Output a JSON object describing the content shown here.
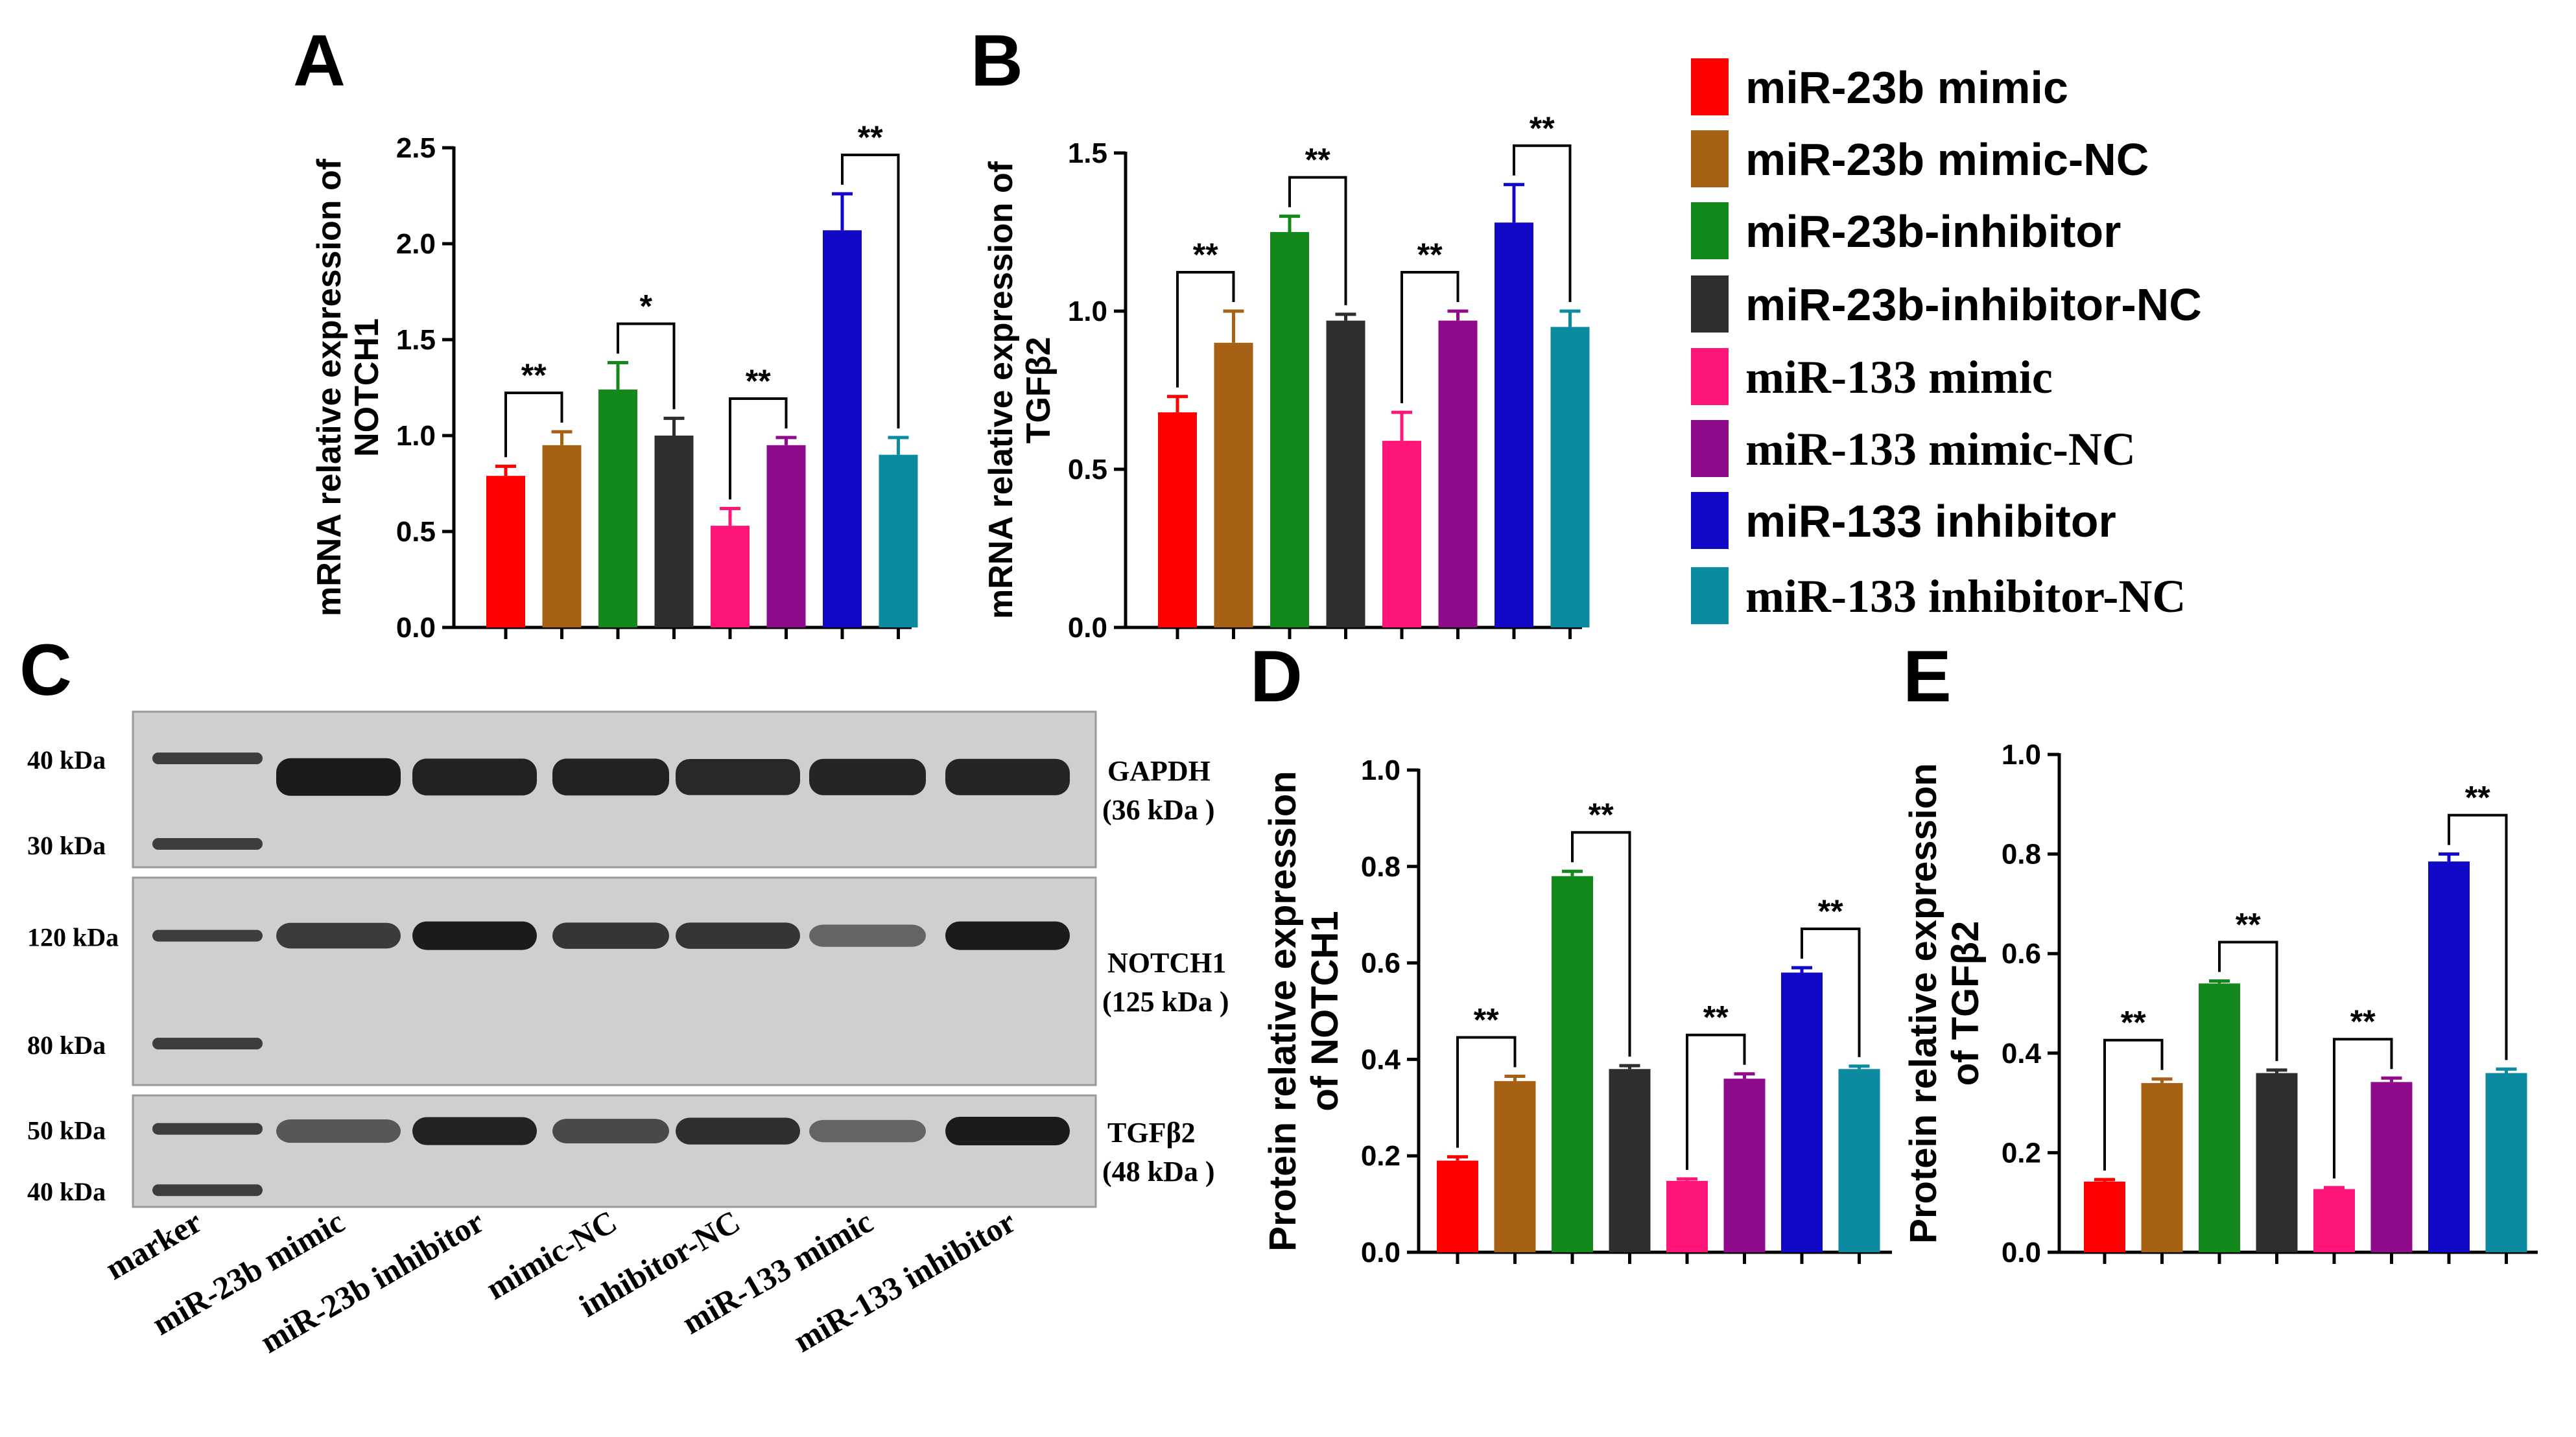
{
  "colors": {
    "mimic23": "#ff0000",
    "mimic23nc": "#a66114",
    "inh23": "#12891a",
    "inh23nc": "#2e2e2e",
    "mimic133": "#ff1577",
    "mimic133nc": "#900b8c",
    "inh133": "#1208c8",
    "inh133nc": "#0b8aa0"
  },
  "legend": {
    "items": [
      {
        "label": "miR-23b mimic",
        "color": "#ff0000",
        "font": "sans"
      },
      {
        "label": "miR-23b mimic-NC",
        "color": "#a66114",
        "font": "sans"
      },
      {
        "label": "miR-23b-inhibitor",
        "color": "#12891a",
        "font": "sans"
      },
      {
        "label": "miR-23b-inhibitor-NC",
        "color": "#2e2e2e",
        "font": "sans"
      },
      {
        "label": "miR-133 mimic",
        "color": "#ff1577",
        "font": "serif"
      },
      {
        "label": "miR-133 mimic-NC",
        "color": "#900b8c",
        "font": "serif"
      },
      {
        "label": "miR-133 inhibitor",
        "color": "#1208c8",
        "font": "sans"
      },
      {
        "label": "miR-133 inhibitor-NC",
        "color": "#0b8aa0",
        "font": "serif"
      }
    ]
  },
  "chart_data": [
    {
      "panel": "A",
      "type": "bar",
      "ylabel_line1": "mRNA relative expression of",
      "ylabel_line2": "NOTCH1",
      "ylim": [
        0,
        2.5
      ],
      "yticks": [
        "0.0",
        "0.5",
        "1.0",
        "1.5",
        "2.0",
        "2.5"
      ],
      "values": [
        0.79,
        0.95,
        1.24,
        1.0,
        0.53,
        0.95,
        2.07,
        0.9
      ],
      "errors": [
        0.05,
        0.07,
        0.14,
        0.09,
        0.09,
        0.04,
        0.19,
        0.09
      ],
      "significance": [
        {
          "bars": [
            0,
            1
          ],
          "label": "**"
        },
        {
          "bars": [
            2,
            3
          ],
          "label": "*"
        },
        {
          "bars": [
            4,
            5
          ],
          "label": "**"
        },
        {
          "bars": [
            6,
            7
          ],
          "label": "**"
        }
      ]
    },
    {
      "panel": "B",
      "type": "bar",
      "ylabel_line1": "mRNA relative expression of",
      "ylabel_line2": "TGFβ2",
      "ylim": [
        0,
        1.5
      ],
      "yticks": [
        "0.0",
        "0.5",
        "1.0",
        "1.5"
      ],
      "values": [
        0.68,
        0.9,
        1.25,
        0.97,
        0.59,
        0.97,
        1.28,
        0.95
      ],
      "errors": [
        0.05,
        0.1,
        0.05,
        0.02,
        0.09,
        0.03,
        0.12,
        0.05
      ],
      "significance": [
        {
          "bars": [
            0,
            1
          ],
          "label": "**"
        },
        {
          "bars": [
            2,
            3
          ],
          "label": "**"
        },
        {
          "bars": [
            4,
            5
          ],
          "label": "**"
        },
        {
          "bars": [
            6,
            7
          ],
          "label": "**"
        }
      ]
    },
    {
      "panel": "D",
      "type": "bar",
      "ylabel_line1": "Protein relative expression",
      "ylabel_line2": "of NOTCH1",
      "ylim": [
        0,
        1.0
      ],
      "yticks": [
        "0.0",
        "0.2",
        "0.4",
        "0.6",
        "0.8",
        "1.0"
      ],
      "values": [
        0.19,
        0.355,
        0.78,
        0.38,
        0.148,
        0.36,
        0.58,
        0.38
      ],
      "errors": [
        0.008,
        0.01,
        0.01,
        0.007,
        0.004,
        0.01,
        0.01,
        0.006
      ],
      "significance": [
        {
          "bars": [
            0,
            1
          ],
          "label": "**"
        },
        {
          "bars": [
            2,
            3
          ],
          "label": "**"
        },
        {
          "bars": [
            4,
            5
          ],
          "label": "**"
        },
        {
          "bars": [
            6,
            7
          ],
          "label": "**"
        }
      ]
    },
    {
      "panel": "E",
      "type": "bar",
      "ylabel_line1": "Protein relative expression",
      "ylabel_line2": "of TGFβ2",
      "ylim": [
        0,
        1.0
      ],
      "yticks": [
        "0.0",
        "0.2",
        "0.4",
        "0.6",
        "0.8",
        "1.0"
      ],
      "values": [
        0.142,
        0.34,
        0.54,
        0.36,
        0.127,
        0.342,
        0.785,
        0.36
      ],
      "errors": [
        0.004,
        0.008,
        0.005,
        0.006,
        0.003,
        0.008,
        0.015,
        0.008
      ],
      "significance": [
        {
          "bars": [
            0,
            1
          ],
          "label": "**"
        },
        {
          "bars": [
            2,
            3
          ],
          "label": "**"
        },
        {
          "bars": [
            4,
            5
          ],
          "label": "**"
        },
        {
          "bars": [
            6,
            7
          ],
          "label": "**"
        }
      ]
    }
  ],
  "blot": {
    "panel": "C",
    "sections": [
      {
        "markers": [
          "40 kDa",
          "30 kDa"
        ],
        "protein": "GAPDH",
        "size": "(36 kDa )",
        "intensity": [
          0.5,
          1.0,
          0.95,
          0.95,
          0.9,
          0.92,
          0.92
        ],
        "marker_levels": [
          0.3,
          0.85
        ]
      },
      {
        "markers": [
          "120 kDa",
          "80 kDa"
        ],
        "protein": "NOTCH1",
        "size": "(125 kDa )",
        "intensity": [
          0.6,
          0.75,
          1.0,
          0.8,
          0.8,
          0.45,
          1.0
        ],
        "marker_levels": [
          0.28,
          0.8
        ]
      },
      {
        "markers": [
          "50 kDa",
          "40 kDa"
        ],
        "protein": "TGFβ2",
        "size": "(48 kDa )",
        "intensity": [
          0.5,
          0.55,
          0.95,
          0.65,
          0.85,
          0.45,
          1.0
        ],
        "marker_levels": [
          0.3,
          0.85
        ]
      }
    ],
    "lanes": [
      "marker",
      "miR-23b mimic",
      "miR-23b inhibitor",
      "mimic-NC",
      "inhibitor-NC",
      "miR-133 mimic",
      "miR-133 inhibitor"
    ]
  }
}
